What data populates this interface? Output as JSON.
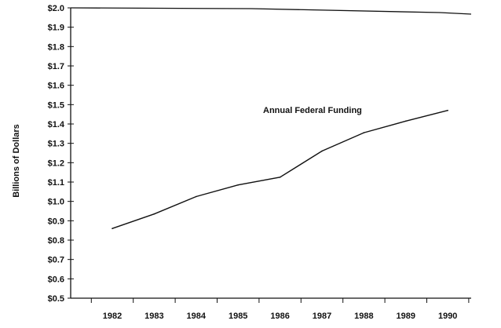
{
  "chart_data": {
    "type": "line",
    "title": "",
    "xlabel": "",
    "ylabel": "Billions of Dollars",
    "ylim": [
      0.5,
      2.0
    ],
    "y_ticks": [
      "$2.0",
      "$1.9",
      "$1.8",
      "$1.7",
      "$1.6",
      "$1.5",
      "$1.4",
      "$1.3",
      "$1.2",
      "$1.1",
      "$1.0",
      "$0.9",
      "$0.8",
      "$0.7",
      "$0.6",
      "$0.5"
    ],
    "y_tick_values": [
      2.0,
      1.9,
      1.8,
      1.7,
      1.6,
      1.5,
      1.4,
      1.3,
      1.2,
      1.1,
      1.0,
      0.9,
      0.8,
      0.7,
      0.6,
      0.5
    ],
    "x": [
      "1982",
      "1983",
      "1984",
      "1985",
      "1986",
      "1987",
      "1988",
      "1989",
      "1990"
    ],
    "grid": false,
    "series": [
      {
        "name": "Annual Federal Funding",
        "values": [
          0.86,
          0.935,
          1.025,
          1.085,
          1.125,
          1.26,
          1.355,
          1.415,
          1.47
        ]
      }
    ]
  }
}
